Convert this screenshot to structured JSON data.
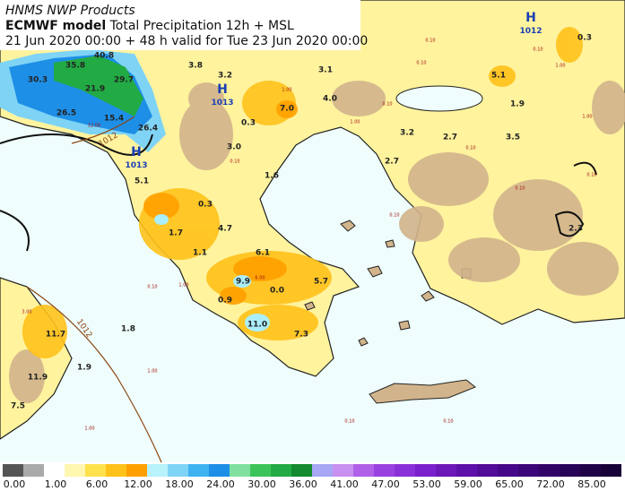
{
  "header": {
    "title": "HNMS NWP Products",
    "model": "ECMWF model",
    "product": "Total Precipitation 12h + MSL",
    "validity": "21 Jun 2020 00:00 + 48 h valid for Tue 23 Jun 2020 00:00"
  },
  "map": {
    "precip_labels": [
      "35.8",
      "40.8",
      "30.3",
      "21.9",
      "29.7",
      "26.5",
      "15.4",
      "26.4",
      "3.8",
      "3.2",
      "3.1",
      "7.0",
      "0.3",
      "4.0",
      "3.0",
      "1.6",
      "5.1",
      "0.3",
      "4.7",
      "1.7",
      "1.1",
      "6.1",
      "9.9",
      "0.0",
      "5.7",
      "0.9",
      "11.0",
      "7.3",
      "11.7",
      "1.8",
      "1.9",
      "11.9",
      "7.5",
      "0.3",
      "5.1",
      "1.9",
      "3.2",
      "2.7",
      "3.5",
      "2.7",
      "2.3"
    ],
    "pressure_centers": [
      {
        "letter": "H",
        "value": "1013"
      },
      {
        "letter": "H",
        "value": "1013"
      },
      {
        "letter": "H",
        "value": "1012"
      }
    ],
    "isobar_labels": [
      "1012",
      "1012"
    ],
    "small_labels": [
      "0.10",
      "1.00",
      "0.10",
      "1.00",
      "0.10",
      "0.10",
      "0.10",
      "1.00",
      "0.10",
      "0.10",
      "0.10",
      "1.00",
      "1.00",
      "3.00",
      "1.00",
      "12.00",
      "6.00",
      "1.00",
      "0.10",
      "0.10",
      "0.10",
      "0.10"
    ]
  },
  "colorbar": {
    "labels": [
      "0.00",
      "1.00",
      "6.00",
      "12.00",
      "18.00",
      "24.00",
      "30.00",
      "36.00",
      "41.00",
      "47.00",
      "53.00",
      "59.00",
      "65.00",
      "72.00",
      "85.00"
    ]
  }
}
